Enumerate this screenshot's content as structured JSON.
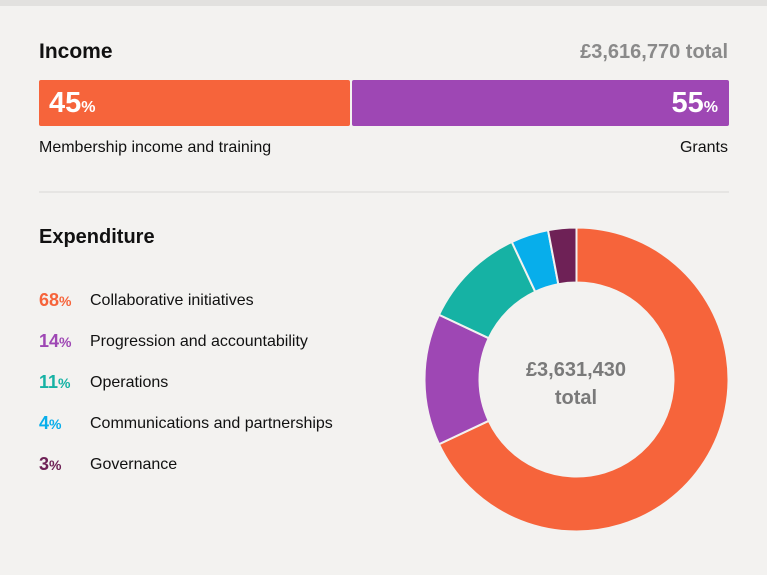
{
  "income": {
    "title": "Income",
    "total": "£3,616,770 total",
    "segments": [
      {
        "value": "45",
        "unit": "%",
        "label": "Membership income and training",
        "color": "#f6643b"
      },
      {
        "value": "55",
        "unit": "%",
        "label": "Grants",
        "color": "#9e47b4"
      }
    ]
  },
  "expenditure": {
    "title": "Expenditure",
    "total_line1": "£3,631,430",
    "total_line2": "total",
    "items": [
      {
        "value": "68",
        "unit": "%",
        "label": "Collaborative initiatives",
        "color": "#f6643b"
      },
      {
        "value": "14",
        "unit": "%",
        "label": "Progression and accountability",
        "color": "#9e47b4"
      },
      {
        "value": "11",
        "unit": "%",
        "label": "Operations",
        "color": "#16b2a4"
      },
      {
        "value": "4",
        "unit": "%",
        "label": "Communications and partnerships",
        "color": "#07aeeb"
      },
      {
        "value": "3",
        "unit": "%",
        "label": "Governance",
        "color": "#6e2156"
      }
    ]
  },
  "chart_data": [
    {
      "type": "bar",
      "title": "Income",
      "subtitle": "£3,616,770 total",
      "orientation": "horizontal-stacked",
      "categories": [
        "Membership income and training",
        "Grants"
      ],
      "values": [
        45,
        55
      ],
      "unit": "%",
      "colors": [
        "#f6643b",
        "#9e47b4"
      ]
    },
    {
      "type": "pie",
      "style": "donut",
      "title": "Expenditure",
      "center_label": "£3,631,430 total",
      "categories": [
        "Collaborative initiatives",
        "Progression and accountability",
        "Operations",
        "Communications and partnerships",
        "Governance"
      ],
      "values": [
        68,
        14,
        11,
        4,
        3
      ],
      "unit": "%",
      "colors": [
        "#f6643b",
        "#9e47b4",
        "#16b2a4",
        "#07aeeb",
        "#6e2156"
      ],
      "legend_position": "left"
    }
  ]
}
